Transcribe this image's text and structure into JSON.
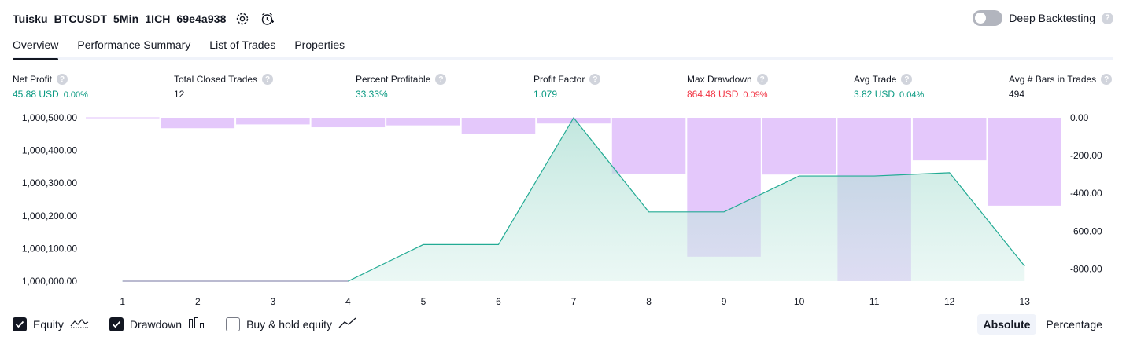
{
  "header": {
    "strategy_name": "Tuisku_BTCUSDT_5Min_1ICH_69e4a938",
    "settings_icon": "gear-icon",
    "alert_icon": "alarm-clock-icon"
  },
  "deep_backtesting": {
    "label": "Deep Backtesting",
    "enabled": false,
    "help": "?"
  },
  "tabs": [
    "Overview",
    "Performance Summary",
    "List of Trades",
    "Properties"
  ],
  "active_tab": "Overview",
  "metrics": [
    {
      "label": "Net Profit",
      "value": "45.88 USD",
      "pct": "0.00%",
      "color": "#089981"
    },
    {
      "label": "Total Closed Trades",
      "value": "12",
      "pct": "",
      "color": "#131722"
    },
    {
      "label": "Percent Profitable",
      "value": "33.33%",
      "pct": "",
      "color": "#089981"
    },
    {
      "label": "Profit Factor",
      "value": "1.079",
      "pct": "",
      "color": "#089981"
    },
    {
      "label": "Max Drawdown",
      "value": "864.48 USD",
      "pct": "0.09%",
      "color": "#f23645"
    },
    {
      "label": "Avg Trade",
      "value": "3.82 USD",
      "pct": "0.04%",
      "color": "#089981"
    },
    {
      "label": "Avg # Bars in Trades",
      "value": "494",
      "pct": "",
      "color": "#131722"
    }
  ],
  "colors": {
    "equity_line": "#22ab94",
    "equity_fill": "#b2e0d7",
    "drawdown": "#e1c2fb",
    "text": "#131722"
  },
  "chart_data": {
    "type": "line",
    "x": [
      1,
      2,
      3,
      4,
      5,
      6,
      7,
      8,
      9,
      10,
      11,
      12,
      13
    ],
    "left_axis": {
      "ticks": [
        "1,000,500.00",
        "1,000,400.00",
        "1,000,300.00",
        "1,000,200.00",
        "1,000,100.00",
        "1,000,000.00"
      ],
      "ylim": [
        1000000,
        1000500
      ]
    },
    "right_axis": {
      "ticks": [
        "0.00",
        "-200.00",
        "-400.00",
        "-600.00",
        "-800.00"
      ],
      "ylim": [
        -864.48,
        0
      ]
    },
    "series": [
      {
        "name": "Equity",
        "type": "area",
        "axis": "left",
        "values": [
          1000000,
          1000000,
          1000000,
          1000000,
          1000112,
          1000112,
          1000500,
          1000212,
          1000212,
          1000322,
          1000322,
          1000332,
          1000046
        ]
      },
      {
        "name": "Drawdown",
        "type": "bar",
        "axis": "right",
        "values": [
          0,
          -55,
          -35,
          -50,
          -40,
          -85,
          -30,
          -295,
          -735,
          -300,
          -864.48,
          -225,
          -465
        ]
      }
    ],
    "grid": false
  },
  "legend": [
    {
      "label": "Equity",
      "checked": true,
      "icon": "equity-line-icon"
    },
    {
      "label": "Drawdown",
      "checked": true,
      "icon": "drawdown-bars-icon"
    },
    {
      "label": "Buy & hold equity",
      "checked": false,
      "icon": "buy-hold-line-icon"
    }
  ],
  "mode": {
    "options": [
      "Absolute",
      "Percentage"
    ],
    "selected": "Absolute"
  }
}
